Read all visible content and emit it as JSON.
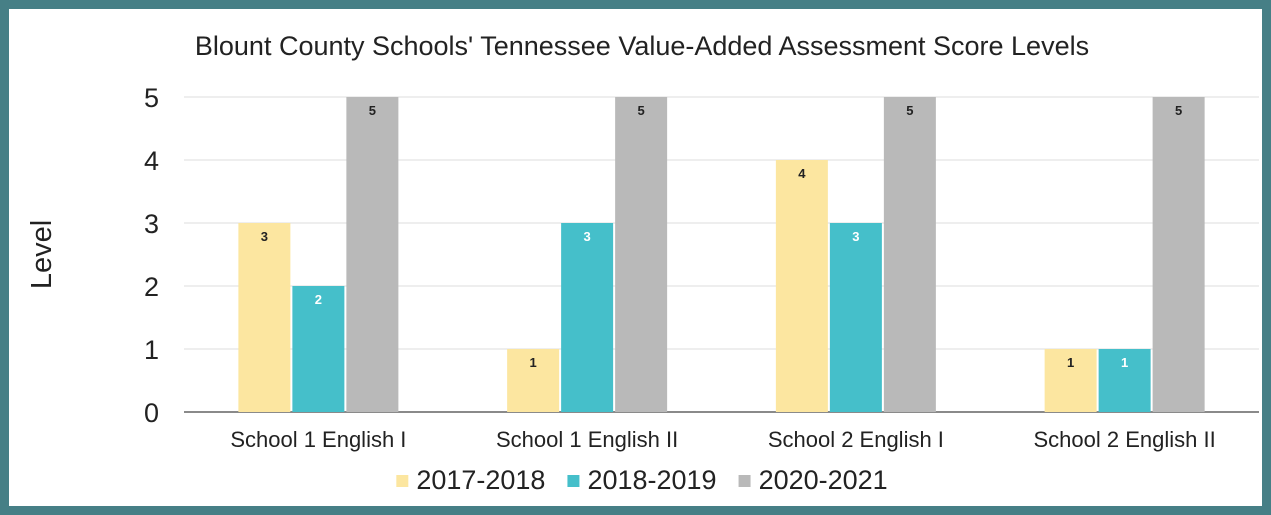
{
  "chart_data": {
    "type": "bar",
    "title": "Blount County Schools' Tennessee Value-Added Assessment Score Levels",
    "xlabel": "",
    "ylabel": "Level",
    "ylim": [
      0,
      5
    ],
    "yticks": [
      0,
      1,
      2,
      3,
      4,
      5
    ],
    "grid": true,
    "legend_position": "bottom",
    "categories": [
      "School 1 English I",
      "School 1 English II",
      "School 2 English I",
      "School 2 English II"
    ],
    "series": [
      {
        "name": "2017-2018",
        "color": "#fce6a0",
        "label_color": "#222222",
        "values": [
          3,
          1,
          4,
          1
        ]
      },
      {
        "name": "2018-2019",
        "color": "#45bfca",
        "label_color": "#ffffff",
        "values": [
          2,
          3,
          3,
          1
        ]
      },
      {
        "name": "2020-2021",
        "color": "#b9b9b9",
        "label_color": "#222222",
        "values": [
          5,
          5,
          5,
          5
        ]
      }
    ]
  }
}
